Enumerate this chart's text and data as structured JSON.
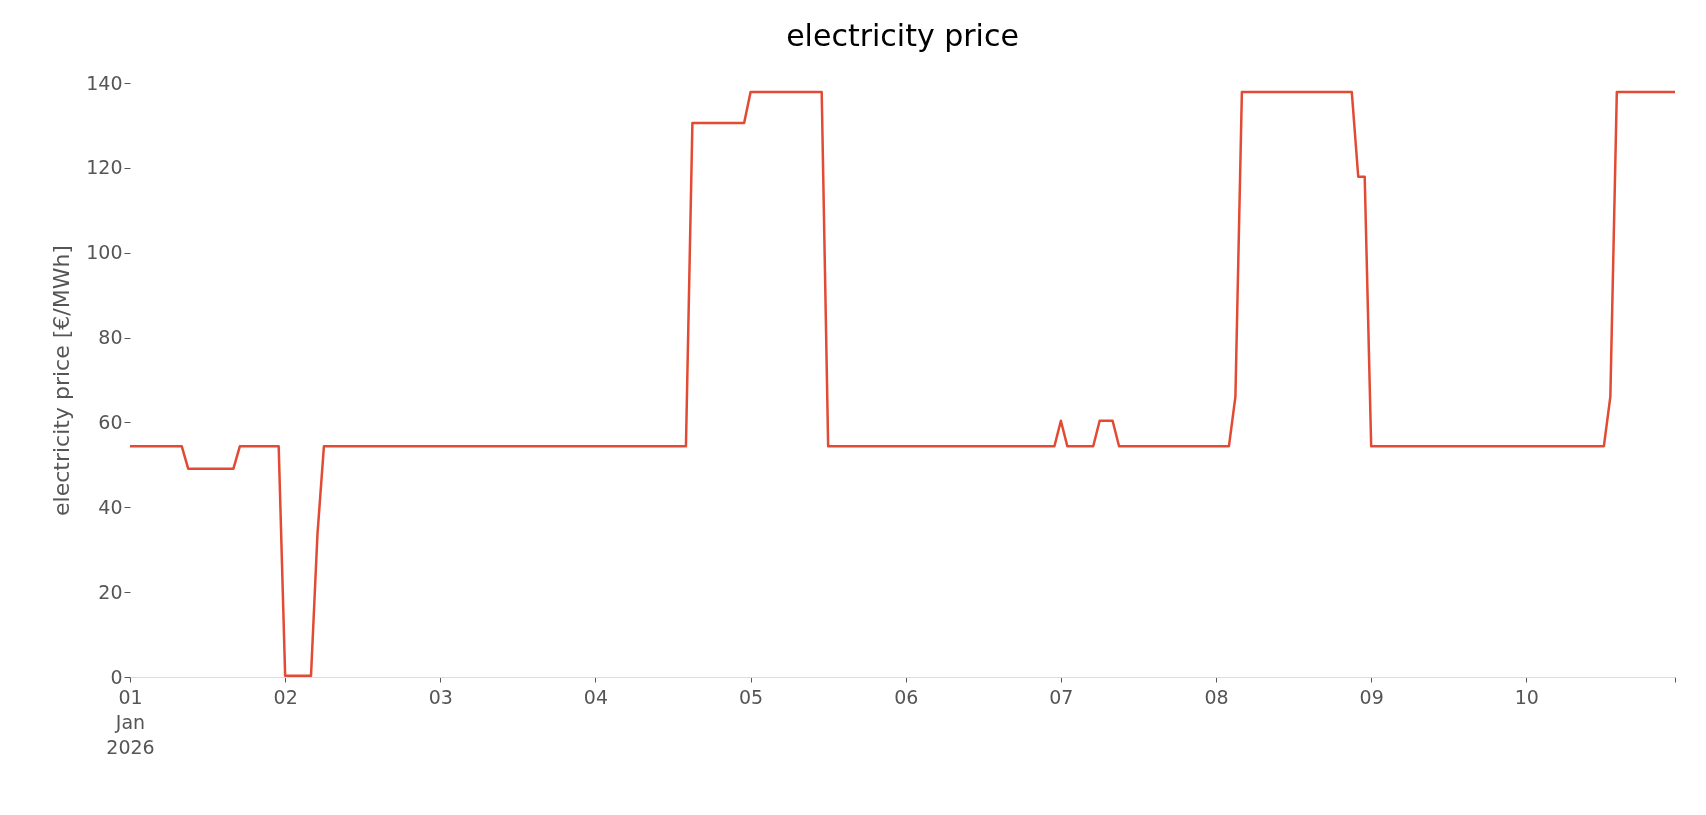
{
  "chart_data": {
    "type": "line",
    "title": "electricity price",
    "ylabel": "electricity price [€/MWh]",
    "x": [
      "2026-01-01T00:00",
      "2026-01-01T08:00",
      "2026-01-01T09:00",
      "2026-01-01T16:00",
      "2026-01-01T17:00",
      "2026-01-01T23:00",
      "2026-01-02T00:00",
      "2026-01-02T04:00",
      "2026-01-02T05:00",
      "2026-01-02T06:00",
      "2026-01-04T14:00",
      "2026-01-04T15:00",
      "2026-01-04T23:00",
      "2026-01-05T00:00",
      "2026-01-05T11:00",
      "2026-01-05T12:00",
      "2026-01-06T23:00",
      "2026-01-07T00:00",
      "2026-01-07T01:00",
      "2026-01-07T05:00",
      "2026-01-07T06:00",
      "2026-01-07T08:00",
      "2026-01-07T09:00",
      "2026-01-08T02:00",
      "2026-01-08T03:00",
      "2026-01-08T04:00",
      "2026-01-08T21:00",
      "2026-01-08T22:00",
      "2026-01-08T23:00",
      "2026-01-09T00:00",
      "2026-01-10T12:00",
      "2026-01-10T13:00",
      "2026-01-10T14:00",
      "2026-01-10T23:00"
    ],
    "series": [
      {
        "color": "#e24a33",
        "values": [
          54.4,
          54.4,
          49.1,
          49.1,
          54.4,
          54.4,
          0.3,
          0.3,
          33.7,
          54.4,
          54.4,
          130.6,
          130.6,
          137.9,
          137.9,
          54.4,
          54.4,
          60.4,
          54.4,
          54.4,
          60.4,
          60.4,
          54.4,
          54.4,
          66.1,
          137.9,
          137.9,
          117.9,
          117.9,
          54.4,
          54.4,
          66.1,
          137.9,
          137.9
        ]
      }
    ],
    "xlim": [
      "2026-01-01",
      "2026-01-10T23:00"
    ],
    "xticks": [
      {
        "value": "2026-01-01",
        "label": "01\nJan\n2026"
      },
      {
        "value": "2026-01-02",
        "label": "02"
      },
      {
        "value": "2026-01-03",
        "label": "03"
      },
      {
        "value": "2026-01-04",
        "label": "04"
      },
      {
        "value": "2026-01-05",
        "label": "05"
      },
      {
        "value": "2026-01-06",
        "label": "06"
      },
      {
        "value": "2026-01-07",
        "label": "07"
      },
      {
        "value": "2026-01-08",
        "label": "08"
      },
      {
        "value": "2026-01-09",
        "label": "09"
      },
      {
        "value": "2026-01-10",
        "label": "10"
      },
      {
        "value": "2026-01-10T23:00",
        "label": null
      }
    ],
    "ylim": [
      0,
      140
    ],
    "yticks": [
      0,
      20,
      40,
      60,
      80,
      100,
      120,
      140
    ],
    "grid": false,
    "legend": false
  }
}
